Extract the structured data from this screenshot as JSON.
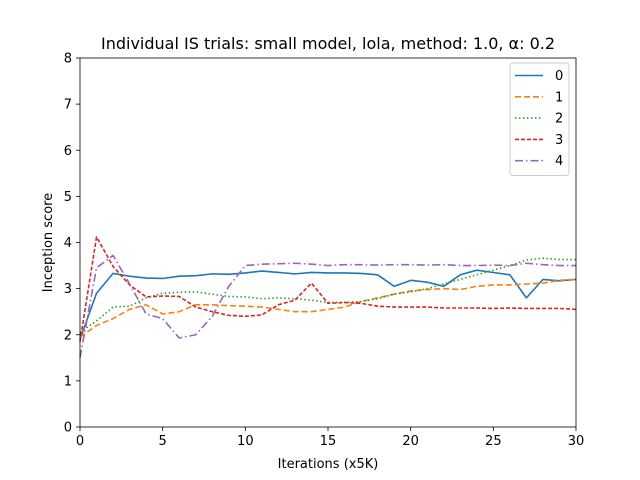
{
  "chart_data": {
    "type": "line",
    "title": "Individual IS trials: small model, lola, method: 1.0, α: 0.2",
    "xlabel": "Iterations (x5K)",
    "ylabel": "Inception score",
    "xlim": [
      0,
      30
    ],
    "ylim": [
      0,
      8
    ],
    "xticks": [
      0,
      5,
      10,
      15,
      20,
      25,
      30
    ],
    "yticks": [
      0,
      1,
      2,
      3,
      4,
      5,
      6,
      7,
      8
    ],
    "grid": false,
    "legend_position": "top-right",
    "x": [
      0,
      1,
      2,
      3,
      4,
      5,
      6,
      7,
      8,
      9,
      10,
      11,
      12,
      13,
      14,
      15,
      16,
      17,
      18,
      19,
      20,
      21,
      22,
      23,
      24,
      25,
      26,
      27,
      28,
      29,
      30
    ],
    "series": [
      {
        "name": "0",
        "color": "#1f77b4",
        "dash": "solid",
        "values": [
          1.9,
          2.9,
          3.33,
          3.27,
          3.23,
          3.22,
          3.27,
          3.28,
          3.32,
          3.31,
          3.34,
          3.38,
          3.35,
          3.32,
          3.35,
          3.34,
          3.34,
          3.33,
          3.3,
          3.05,
          3.18,
          3.14,
          3.05,
          3.3,
          3.4,
          3.35,
          3.3,
          2.8,
          3.2,
          3.17,
          3.2
        ]
      },
      {
        "name": "1",
        "color": "#ff7f0e",
        "dash": "dashed",
        "values": [
          1.95,
          2.2,
          2.35,
          2.55,
          2.65,
          2.45,
          2.5,
          2.65,
          2.65,
          2.63,
          2.62,
          2.6,
          2.55,
          2.5,
          2.5,
          2.55,
          2.6,
          2.72,
          2.8,
          2.88,
          2.95,
          2.98,
          3.0,
          2.98,
          3.05,
          3.08,
          3.08,
          3.1,
          3.12,
          3.18,
          3.2
        ]
      },
      {
        "name": "2",
        "color": "#2ca02c",
        "dash": "dotted",
        "values": [
          2.05,
          2.3,
          2.6,
          2.62,
          2.8,
          2.9,
          2.92,
          2.93,
          2.88,
          2.83,
          2.82,
          2.78,
          2.8,
          2.78,
          2.75,
          2.7,
          2.7,
          2.72,
          2.78,
          2.88,
          2.93,
          3.0,
          3.1,
          3.2,
          3.3,
          3.4,
          3.5,
          3.62,
          3.66,
          3.63,
          3.63
        ]
      },
      {
        "name": "3",
        "color": "#d62728",
        "dash": "dashdot-fine",
        "values": [
          1.85,
          4.12,
          3.48,
          3.08,
          2.82,
          2.84,
          2.83,
          2.6,
          2.5,
          2.42,
          2.4,
          2.43,
          2.65,
          2.75,
          3.12,
          2.68,
          2.7,
          2.68,
          2.62,
          2.6,
          2.6,
          2.6,
          2.58,
          2.58,
          2.58,
          2.57,
          2.58,
          2.57,
          2.57,
          2.57,
          2.55
        ]
      },
      {
        "name": "4",
        "color": "#9467bd",
        "dash": "dashdot",
        "values": [
          1.5,
          3.45,
          3.72,
          3.1,
          2.45,
          2.35,
          1.93,
          2.0,
          2.4,
          3.05,
          3.5,
          3.53,
          3.54,
          3.55,
          3.53,
          3.5,
          3.52,
          3.52,
          3.51,
          3.52,
          3.52,
          3.51,
          3.52,
          3.5,
          3.5,
          3.51,
          3.5,
          3.55,
          3.52,
          3.5,
          3.5
        ]
      }
    ]
  }
}
